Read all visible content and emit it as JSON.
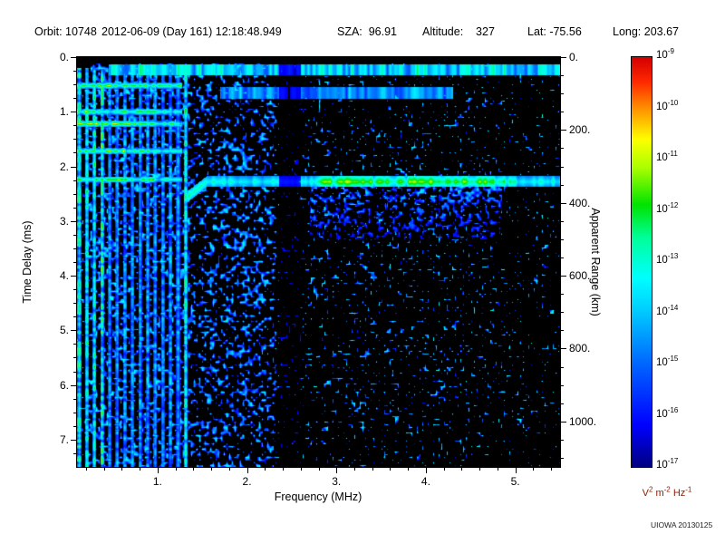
{
  "header": {
    "segments": [
      "Orbit: 10748",
      "2012-06-09 (Day 161) 12:18:48.949",
      "SZA:  96.91",
      "Altitude:    327",
      "Lat: -75.56",
      "Long: 203.67"
    ]
  },
  "chart_data": {
    "type": "heatmap",
    "xlabel": "Frequency (MHz)",
    "ylabel": "Time Delay (ms)",
    "y2label": "Apparent Range (km)",
    "x_range_mhz": [
      0.1,
      5.5
    ],
    "x_ticks": [
      "1.",
      "2.",
      "3.",
      "4.",
      "5."
    ],
    "x_tick_values": [
      1,
      2,
      3,
      4,
      5
    ],
    "x_minor_step_mhz": 0.2,
    "y_range_ms": [
      0,
      7.5
    ],
    "y_ticks": [
      "0.",
      "1.",
      "2.",
      "3.",
      "4.",
      "5.",
      "6.",
      "7."
    ],
    "y_tick_values": [
      0,
      1,
      2,
      3,
      4,
      5,
      6,
      7
    ],
    "y_minor_step_ms": 0.25,
    "y2_ticks": [
      "0.",
      "200.",
      "400.",
      "600.",
      "800.",
      "1000."
    ],
    "y2_tick_values_km": [
      0,
      200,
      400,
      600,
      800,
      1000
    ],
    "y2_minor_step_km": 50,
    "range_conversion_km_per_ms": 150,
    "colorbar": {
      "scale": "log10",
      "mantissa": "10",
      "top_exponent": -9,
      "bottom_exponent": -17,
      "tick_exponents": [
        -9,
        -10,
        -11,
        -12,
        -13,
        -14,
        -15,
        -16,
        -17
      ],
      "units_parts": [
        {
          "base": "V",
          "exp": "2"
        },
        {
          "base": "m",
          "exp": "-2"
        },
        {
          "base": "Hz",
          "exp": "-1"
        }
      ]
    },
    "features": {
      "seed": 20130125,
      "noise_speckle": {
        "dense_f_mhz": [
          0.2,
          2.32
        ],
        "dense_level": 0.62,
        "sparse_level": 0.3,
        "right_sparse_f_mhz": 4.75,
        "right_sparse_level": 0.2,
        "top_black_ms": 0.12
      },
      "vertical_harmonics": {
        "start_mhz": 0.125,
        "step_mhz": 0.085,
        "count": 15,
        "half_width_mhz": 0.021,
        "strong_indices": [
          0,
          1,
          2,
          3,
          14
        ],
        "base_t": 0.4,
        "strong_t": 0.58
      },
      "left_bands": {
        "f_max_mhz": 1.28,
        "delays_ms": [
          0.52,
          1.0,
          1.22,
          1.72,
          2.24
        ],
        "half_width_ms": 0.055,
        "t": 0.66
      },
      "top_band": {
        "d_range_ms": [
          0.14,
          0.34
        ],
        "f_min_mhz": 0.45,
        "t": 0.5
      },
      "second_band": {
        "d_range_ms": [
          0.55,
          0.76
        ],
        "f_range_mhz": [
          1.7,
          4.3
        ],
        "t": 0.36
      },
      "echo_band": {
        "delay_ms": 2.28,
        "half_width_ms": 0.1,
        "f_range_mhz": [
          1.3,
          5.5
        ],
        "hook_f_mhz": [
          1.3,
          1.55
        ],
        "hook_extra_ms": 0.32,
        "peak_f_range_mhz": [
          2.95,
          4.65
        ],
        "peak_t": 0.72,
        "base_t": 0.54,
        "diffuse_below_ms": 1.05,
        "diffuse_f_range_mhz": [
          2.7,
          4.85
        ],
        "diffuse_t": 0.4
      },
      "dark_gap": {
        "f_range_mhz": [
          2.36,
          2.6
        ],
        "attenuation": 0.3
      }
    }
  },
  "colors": {
    "background": "#ffffff",
    "plot_background": "#000000",
    "frame": "#000000",
    "text": "#000000",
    "units_label": "#8B1A00",
    "watermark": "#222222",
    "colormap_stops": [
      [
        0.0,
        "#000082"
      ],
      [
        0.1,
        "#0000ff"
      ],
      [
        0.25,
        "#0066ff"
      ],
      [
        0.38,
        "#00ccff"
      ],
      [
        0.46,
        "#00ffff"
      ],
      [
        0.56,
        "#00ff99"
      ],
      [
        0.64,
        "#00e400"
      ],
      [
        0.73,
        "#aaff00"
      ],
      [
        0.8,
        "#ffff00"
      ],
      [
        0.87,
        "#ff9900"
      ],
      [
        0.94,
        "#ff2a00"
      ],
      [
        1.0,
        "#d60000"
      ]
    ]
  },
  "watermark": "UIOWA 20130125"
}
